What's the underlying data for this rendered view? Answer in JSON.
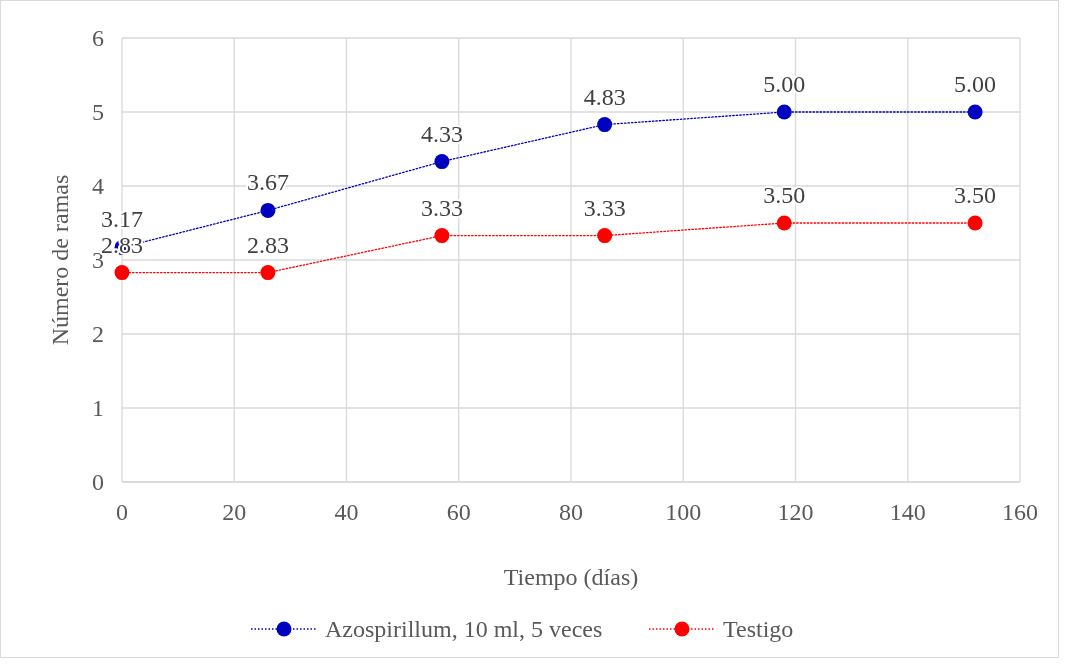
{
  "chart_data": {
    "type": "line",
    "xlabel": "Tiempo (días)",
    "ylabel": "Número de ramas",
    "x": [
      0,
      26,
      57,
      86,
      118,
      152
    ],
    "series": [
      {
        "name": "Azospirillum, 10 ml, 5 veces",
        "color": "#0000c0",
        "values": [
          3.17,
          3.67,
          4.33,
          4.83,
          5,
          5
        ],
        "value_labels": [
          "3.17",
          "3.67",
          "4.33",
          "4.83",
          "5.00",
          "5.00"
        ]
      },
      {
        "name": "Testigo",
        "color": "#ff0000",
        "values": [
          2.83,
          2.83,
          3.33,
          3.33,
          3.5,
          3.5
        ],
        "value_labels": [
          "2.83",
          "2.83",
          "3.33",
          "3.33",
          "3.50",
          "3.50"
        ]
      }
    ],
    "xlim": [
      0,
      160
    ],
    "xticks": [
      0,
      20,
      40,
      60,
      80,
      100,
      120,
      140,
      160
    ],
    "ylim": [
      0,
      6
    ],
    "yticks": [
      0,
      1,
      2,
      3,
      4,
      5,
      6
    ],
    "grid": true,
    "legend": "bottom",
    "marker": "circle",
    "line_style": "dotted"
  }
}
